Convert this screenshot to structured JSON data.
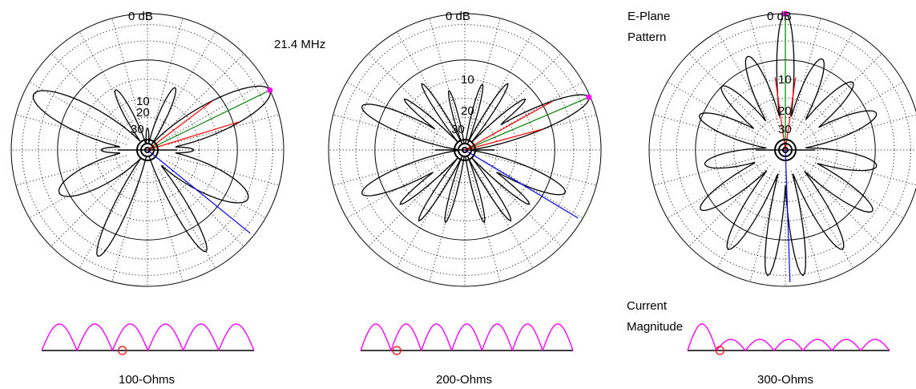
{
  "frequency_label": "21.4 MHz",
  "eplane_label": [
    "E-Plane",
    "Pattern"
  ],
  "current_label": [
    "Current",
    "Magnitude"
  ],
  "ring_labels": [
    "0 dB",
    "10",
    "20",
    "30"
  ],
  "colors": {
    "pattern": "#000000",
    "grid": "#000000",
    "current": "#ff00ff",
    "marker": "#ff0000",
    "max_gain_ray": "#008000",
    "beamwidth_rays": "#ff0000",
    "blue_ray": "#0000ff"
  },
  "plots": [
    {
      "caption": "100-Ohms",
      "main_lobe_bearing_deg": 64,
      "beamwidth_deg": [
        53,
        73
      ],
      "blue_ray_bearing_deg": 129,
      "current_loops": 6,
      "feed_fraction": 0.38
    },
    {
      "caption": "200-Ohms",
      "main_lobe_bearing_deg": 67,
      "beamwidth_deg": [
        61,
        75
      ],
      "blue_ray_bearing_deg": 121,
      "current_loops": 7,
      "feed_fraction": 0.17
    },
    {
      "caption": "300-Ohms",
      "main_lobe_bearing_deg": 0,
      "beamwidth_deg": [
        -8,
        8
      ],
      "blue_ray_bearing_deg": 178,
      "current_loops": 7,
      "feed_fraction": 0.16
    }
  ]
}
